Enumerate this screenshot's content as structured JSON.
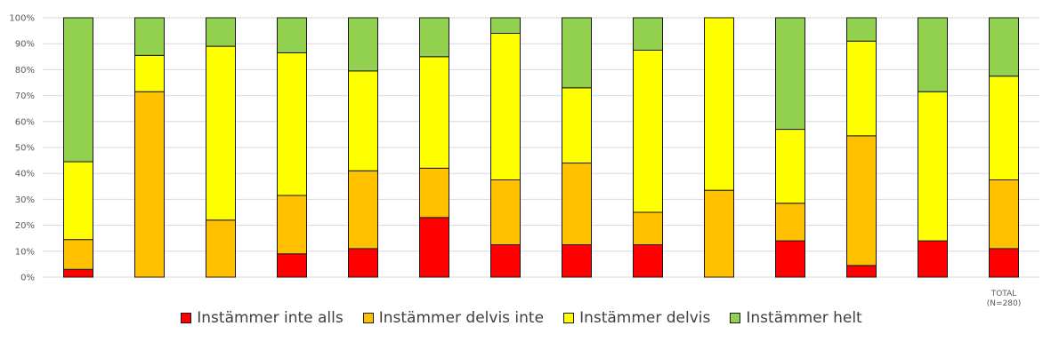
{
  "chart_data": {
    "type": "bar",
    "stacked": true,
    "title": "",
    "xlabel": "",
    "ylabel": "",
    "ylim": [
      0,
      100
    ],
    "y_ticks": [
      "0%",
      "10%",
      "20%",
      "30%",
      "40%",
      "50%",
      "60%",
      "70%",
      "80%",
      "90%",
      "100%"
    ],
    "grid": true,
    "legend_position": "bottom",
    "categories": [
      "",
      "",
      "",
      "",
      "",
      "",
      "",
      "",
      "",
      "",
      "",
      "",
      "",
      "TOTAL (N=280)"
    ],
    "category_lines": [
      [
        ""
      ],
      [
        ""
      ],
      [
        ""
      ],
      [
        ""
      ],
      [
        ""
      ],
      [
        ""
      ],
      [
        ""
      ],
      [
        ""
      ],
      [
        ""
      ],
      [
        ""
      ],
      [
        ""
      ],
      [
        ""
      ],
      [
        ""
      ],
      [
        "TOTAL",
        "(N=280)"
      ]
    ],
    "series": [
      {
        "name": "Instämmer inte alls",
        "color": "#ff0000",
        "values": [
          3,
          0,
          0,
          9,
          11,
          23,
          12.5,
          12.5,
          12.5,
          0,
          14,
          4.5,
          14,
          11
        ]
      },
      {
        "name": "Instämmer delvis inte",
        "color": "#ffc000",
        "values": [
          11.5,
          71.5,
          22,
          22.5,
          30,
          19,
          25,
          31.5,
          12.5,
          33.5,
          14.5,
          50,
          0,
          26.5
        ]
      },
      {
        "name": "Instämmer delvis",
        "color": "#ffff00",
        "values": [
          30,
          14,
          67,
          55,
          38.5,
          43,
          56.5,
          29,
          62.5,
          66.5,
          28.5,
          36.5,
          57.5,
          40
        ]
      },
      {
        "name": "Instämmer helt",
        "color": "#92d050",
        "values": [
          55.5,
          14.5,
          11,
          13.5,
          20.5,
          15,
          6,
          27,
          12.5,
          0,
          43,
          9,
          28.5,
          22.5
        ]
      }
    ]
  }
}
